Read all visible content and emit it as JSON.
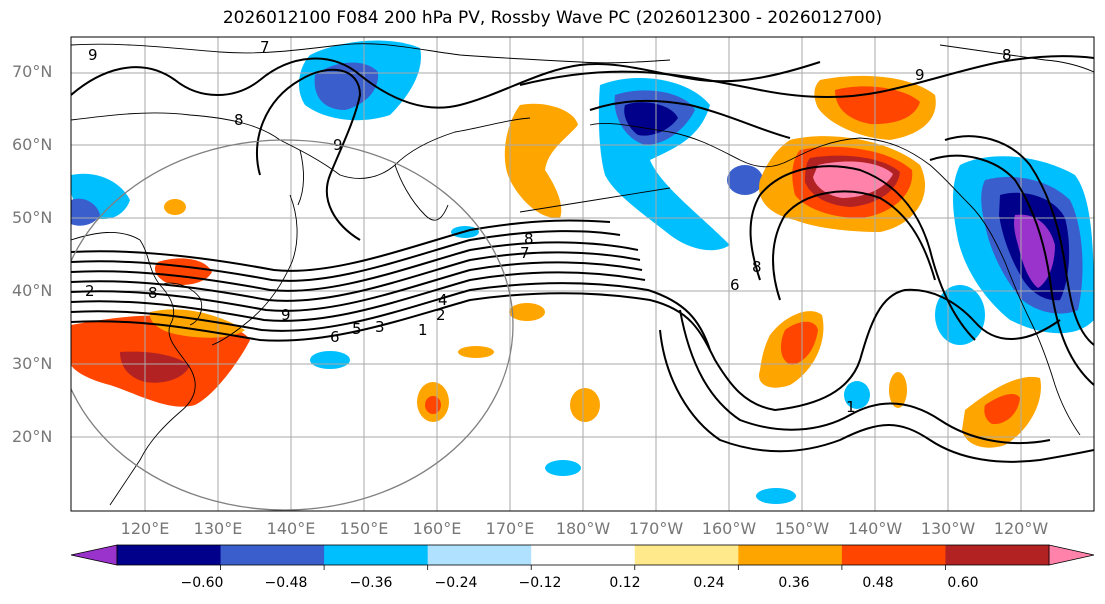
{
  "title": "2026012100 F084 200 hPa PV, Rossby Wave PC (2026012300 - 2026012700)",
  "lat_labels": [
    "70°N",
    "60°N",
    "50°N",
    "40°N",
    "30°N",
    "20°N"
  ],
  "lon_labels": [
    "120°E",
    "130°E",
    "140°E",
    "150°E",
    "160°E",
    "170°E",
    "180°W",
    "170°W",
    "160°W",
    "150°W",
    "140°W",
    "130°W",
    "120°W"
  ],
  "colorbar": {
    "ticks": [
      "−0.60",
      "−0.48",
      "−0.36",
      "−0.24",
      "−0.12",
      "0.12",
      "0.24",
      "0.36",
      "0.48",
      "0.60"
    ],
    "colors": [
      "#9933cc",
      "#00008b",
      "#3a5fcd",
      "#00bfff",
      "#b0e2ff",
      "#ffffff",
      "#ffe98a",
      "#ffa500",
      "#ff4500",
      "#b22222",
      "#ff82ab"
    ]
  },
  "contour_labels": [
    "9",
    "8",
    "9",
    "8",
    "7",
    "6",
    "8",
    "9",
    "8",
    "6",
    "5",
    "4",
    "3",
    "2",
    "1",
    "2",
    "1",
    "7",
    "8",
    "9"
  ],
  "colors": {
    "grid": "#aaaaaa",
    "coast": "#000000",
    "contour": "#000000",
    "circle": "#808080"
  }
}
